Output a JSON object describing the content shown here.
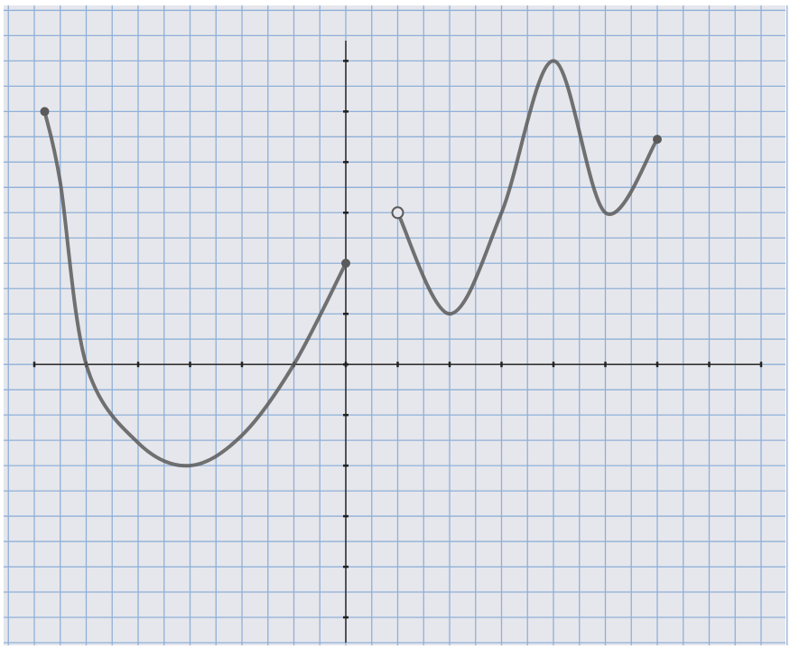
{
  "chart_data": {
    "type": "line",
    "x": [
      -5.8,
      -5.5,
      -5,
      -4,
      -3,
      -2,
      -1,
      0,
      0.5,
      1,
      2,
      3,
      4,
      5,
      6
    ],
    "values": [
      5,
      3.6,
      0,
      -1.55,
      -2,
      -1.4,
      0,
      2,
      null,
      3,
      1,
      3,
      6,
      3,
      4.45
    ],
    "open_x": [
      1
    ],
    "color": "#5a5a5a",
    "xlim": [
      -6,
      8
    ],
    "ylim": [
      -5.5,
      6.4
    ],
    "xticks": [
      -6,
      -5,
      -4,
      -3,
      -2,
      -1,
      0,
      1,
      2,
      3,
      4,
      5,
      6,
      7,
      8
    ],
    "yticks": [
      -5,
      -4,
      -3,
      -2,
      -1,
      0,
      1,
      2,
      3,
      4,
      5,
      6
    ],
    "grid": true
  }
}
